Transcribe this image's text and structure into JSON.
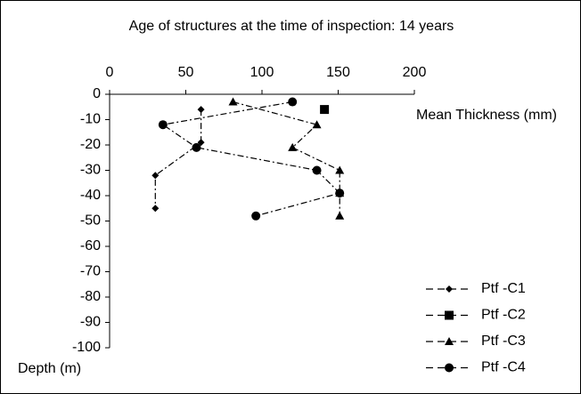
{
  "chart_data": {
    "type": "line",
    "title": "Age of structures at the time of inspection: 14 years",
    "x_label": "Mean Thickness (mm)",
    "y_label": "Depth (m)",
    "xlim": [
      0,
      200
    ],
    "xticks": [
      0,
      50,
      100,
      150,
      200
    ],
    "ylim": [
      -100,
      0
    ],
    "yticks": [
      0,
      -10,
      -20,
      -30,
      -40,
      -50,
      -60,
      -70,
      -80,
      -90,
      -100
    ],
    "x_axis_position": "top",
    "grid": false,
    "legend": "lower right",
    "series": [
      {
        "name": "Ptf -C1",
        "color": "#000000",
        "marker": "diamond",
        "x": [
          60,
          60,
          30,
          30
        ],
        "values": [
          -6,
          -19,
          -32,
          -45
        ]
      },
      {
        "name": "Ptf -C2",
        "color": "#000000",
        "marker": "square",
        "x": [
          141
        ],
        "values": [
          -6
        ]
      },
      {
        "name": "Ptf -C3",
        "color": "#000000",
        "marker": "triangle",
        "x": [
          81,
          136,
          120,
          151,
          151,
          151
        ],
        "values": [
          -3,
          -12,
          -21,
          -30,
          -39,
          -48
        ]
      },
      {
        "name": "Ptf -C4",
        "color": "#000000",
        "marker": "circle",
        "x": [
          120,
          35,
          57,
          136,
          151,
          96
        ],
        "values": [
          -3,
          -12,
          -21,
          -30,
          -39,
          -48
        ]
      }
    ]
  }
}
